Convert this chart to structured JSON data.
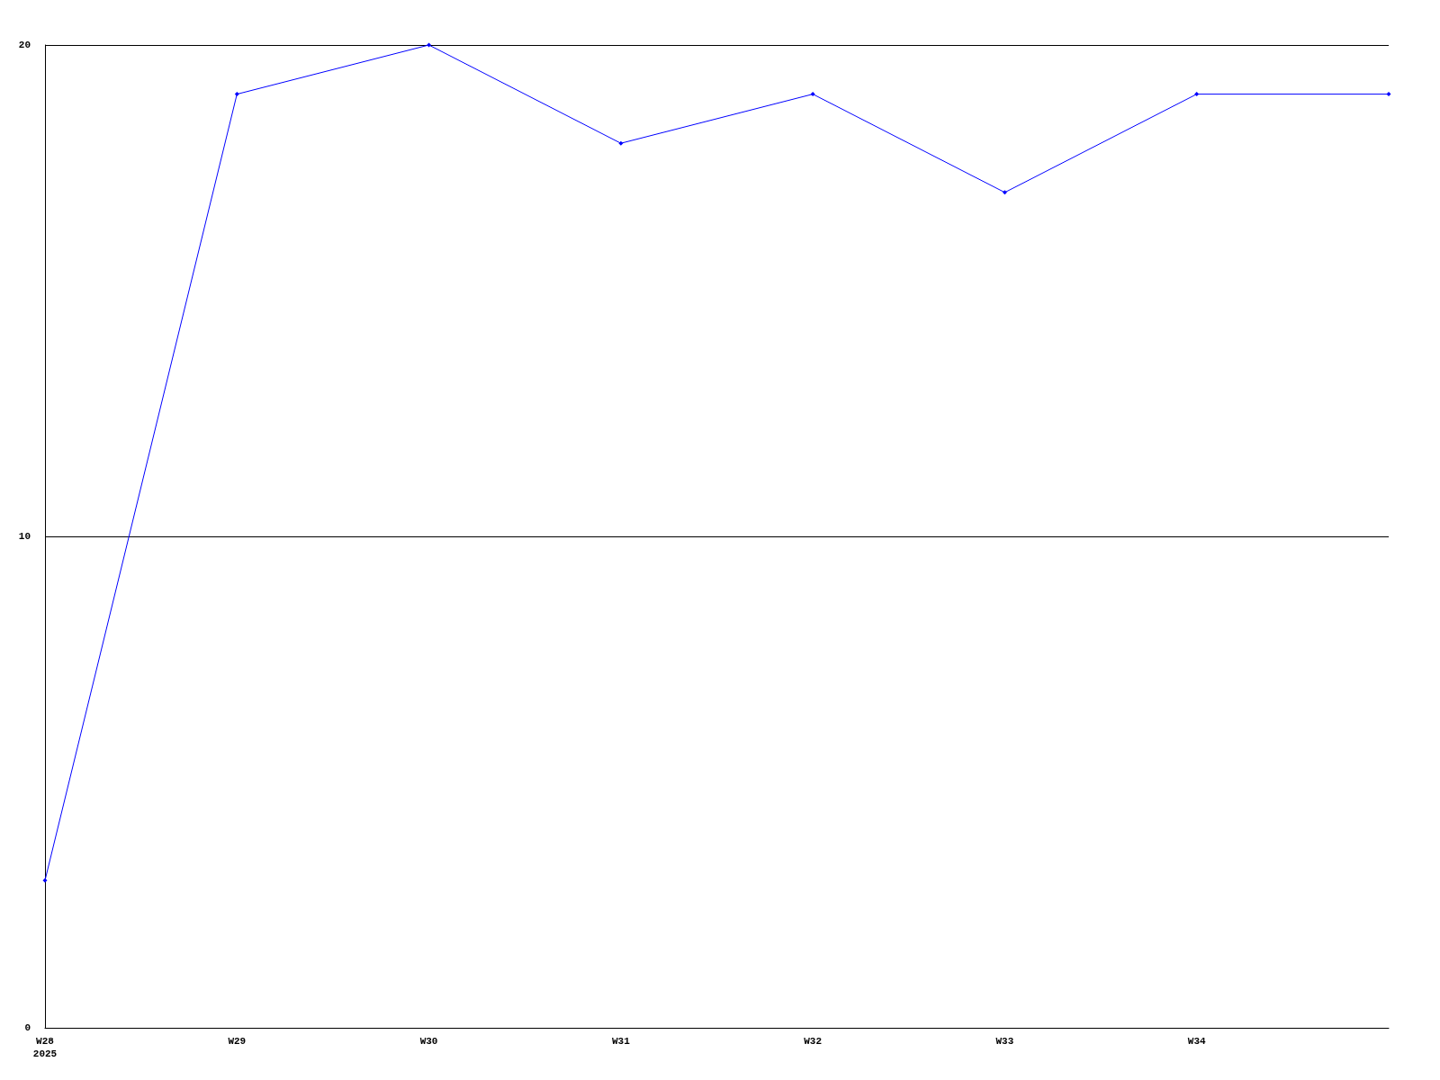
{
  "chart_data": {
    "type": "line",
    "categories": [
      "W28\n2025",
      "W29",
      "W30",
      "W31",
      "W32",
      "W33",
      "W34",
      null
    ],
    "series": [
      {
        "color": "#0000ff",
        "values": [
          3,
          19,
          20,
          18,
          19,
          17,
          19,
          19
        ]
      }
    ],
    "ylim": [
      0,
      20
    ],
    "yticks": [
      0,
      10,
      20
    ],
    "grid": "y",
    "marker": "diamond",
    "line_style": "solid"
  }
}
